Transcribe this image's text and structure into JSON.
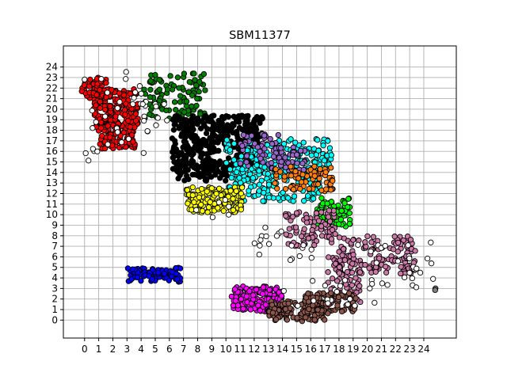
{
  "chart_data": {
    "type": "scatter",
    "title": "SBM11377",
    "xlabel": "",
    "ylabel": "",
    "xlim": [
      -1.5,
      26.3
    ],
    "ylim": [
      -1.7,
      26.0
    ],
    "xticks": [
      0,
      1,
      2,
      3,
      4,
      5,
      6,
      7,
      8,
      9,
      10,
      11,
      12,
      13,
      14,
      15,
      16,
      17,
      18,
      19,
      20,
      21,
      22,
      23,
      24
    ],
    "yticks": [
      0,
      1,
      2,
      3,
      4,
      5,
      6,
      7,
      8,
      9,
      10,
      11,
      12,
      13,
      14,
      15,
      16,
      17,
      18,
      19,
      20,
      21,
      22,
      23,
      24
    ],
    "grid": true,
    "legend": "none",
    "clusters": [
      {
        "color": "#ff0000",
        "regions": [
          [
            -0.2,
            23.0,
            1.6,
            21.0
          ],
          [
            0.6,
            22.0,
            3.8,
            18.2
          ],
          [
            1.0,
            18.8,
            3.6,
            16.2
          ]
        ],
        "n": 320
      },
      {
        "color": "#008000",
        "regions": [
          [
            4.2,
            23.4,
            8.6,
            19.0
          ]
        ],
        "n": 110
      },
      {
        "color": "#000000",
        "regions": [
          [
            6.2,
            19.4,
            12.6,
            14.0
          ],
          [
            6.6,
            15.0,
            10.4,
            13.2
          ]
        ],
        "n": 480
      },
      {
        "color": "#00ffff",
        "regions": [
          [
            10.0,
            17.2,
            17.6,
            13.8
          ],
          [
            10.2,
            14.5,
            16.8,
            11.2
          ]
        ],
        "n": 300
      },
      {
        "color": "#9966cc",
        "regions": [
          [
            11.0,
            17.8,
            13.8,
            14.6
          ],
          [
            13.2,
            16.4,
            15.6,
            14.2
          ]
        ],
        "n": 90
      },
      {
        "color": "#ff7f0e",
        "regions": [
          [
            13.4,
            14.6,
            17.6,
            12.2
          ]
        ],
        "n": 80
      },
      {
        "color": "#ffff00",
        "regions": [
          [
            7.2,
            12.6,
            11.2,
            10.2
          ]
        ],
        "n": 160
      },
      {
        "color": "#00ff00",
        "regions": [
          [
            16.4,
            11.6,
            18.8,
            8.8
          ]
        ],
        "n": 80
      },
      {
        "color": "#cc79a7",
        "regions": [
          [
            14.2,
            10.4,
            17.8,
            7.0
          ],
          [
            18.0,
            8.0,
            23.4,
            4.4
          ],
          [
            17.2,
            6.2,
            19.6,
            1.2
          ]
        ],
        "n": 300
      },
      {
        "color": "#0000ff",
        "regions": [
          [
            3.0,
            5.0,
            6.8,
            3.6
          ]
        ],
        "n": 90
      },
      {
        "color": "#ff00ff",
        "regions": [
          [
            10.4,
            3.2,
            14.0,
            0.8
          ]
        ],
        "n": 180
      },
      {
        "color": "#8c564b",
        "regions": [
          [
            13.0,
            1.8,
            17.0,
            -0.1
          ],
          [
            15.6,
            2.6,
            19.2,
            0.6
          ]
        ],
        "n": 200
      },
      {
        "color": "#ffffff",
        "regions": [
          [
            0.0,
            24.4,
            4.6,
            15.0
          ],
          [
            4.4,
            21.0,
            6.0,
            16.0
          ],
          [
            6.2,
            11.4,
            10.6,
            9.6
          ],
          [
            12.0,
            8.8,
            16.4,
            5.6
          ],
          [
            13.6,
            3.8,
            20.8,
            1.2
          ],
          [
            19.2,
            7.4,
            25.0,
            2.8
          ]
        ],
        "n": 110
      },
      {
        "color": "#808080",
        "regions": [
          [
            0.4,
            25.0,
            0.9,
            24.6
          ],
          [
            24.6,
            3.2,
            25.0,
            2.8
          ]
        ],
        "n": 2
      }
    ]
  }
}
